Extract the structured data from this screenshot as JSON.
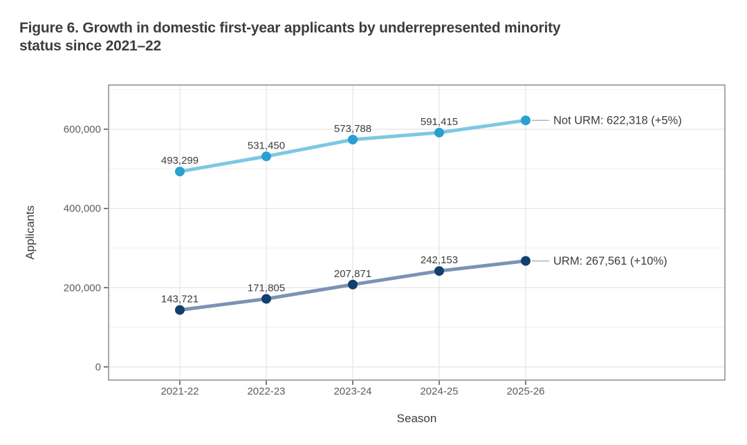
{
  "title": {
    "line1": "Figure 6. Growth in domestic first-year applicants by underrepresented minority",
    "line2": "status since 2021–22"
  },
  "chart_data": {
    "type": "line",
    "title": "Figure 6. Growth in domestic first-year applicants by underrepresented minority status since 2021–22",
    "xlabel": "Season",
    "ylabel": "Applicants",
    "categories": [
      "2021-22",
      "2022-23",
      "2023-24",
      "2024-25",
      "2025-26"
    ],
    "y_ticks": [
      {
        "value": 0,
        "label": "0"
      },
      {
        "value": 200000,
        "label": "200,000"
      },
      {
        "value": 400000,
        "label": "400,000"
      },
      {
        "value": 600000,
        "label": "600,000"
      }
    ],
    "y_minor_gridlines": [
      100000,
      300000,
      500000,
      700000
    ],
    "ylim": [
      0,
      700000
    ],
    "grid": true,
    "legend_position": "end-of-line-labels",
    "series": [
      {
        "name": "Not URM",
        "values": [
          493299,
          531450,
          573788,
          591415,
          622318
        ],
        "point_labels": [
          "493,299",
          "531,450",
          "573,788",
          "591,415"
        ],
        "end_label": "Not URM: 622,318 (+5%)",
        "line_color": "#7cc8e2",
        "point_color": "#29a0cf"
      },
      {
        "name": "URM",
        "values": [
          143721,
          171805,
          207871,
          242153,
          267561
        ],
        "point_labels": [
          "143,721",
          "171,805",
          "207,871",
          "242,153"
        ],
        "end_label": "URM: 267,561 (+10%)",
        "line_color": "#7b93b4",
        "point_color": "#123f6d"
      }
    ],
    "colors": {
      "grid_major": "#e4e4e4",
      "grid_minor": "#efefef",
      "panel_border": "#8a8a8a",
      "tick_mark": "#4d4d4d",
      "connector": "#b3b3b3",
      "panel_background": "#ffffff"
    }
  }
}
